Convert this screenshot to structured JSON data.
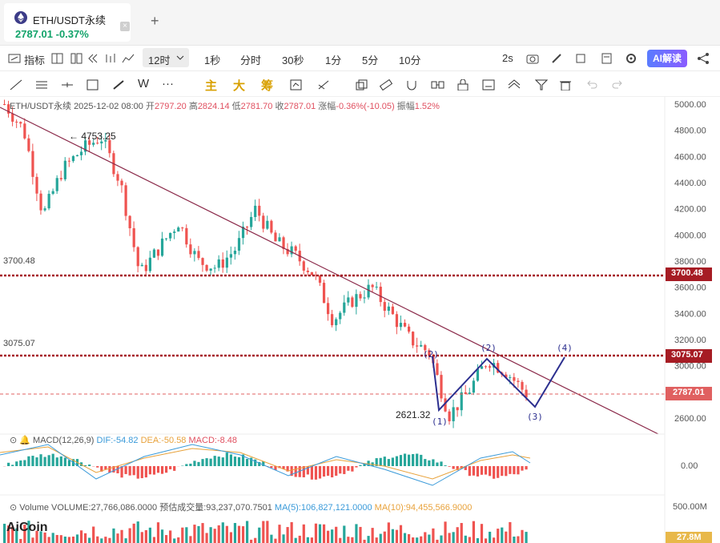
{
  "tab": {
    "title": "ETH/USDT永续",
    "price": "2787.01",
    "change": "-0.37%",
    "close": "×",
    "add": "+"
  },
  "toolbar1": {
    "indicators": "指标",
    "interval": "12时",
    "intervals": [
      "1秒",
      "分时",
      "30秒",
      "1分",
      "5分",
      "10分"
    ],
    "speed": "2s",
    "ai": "AI解读"
  },
  "toolbar2": {
    "w": "W",
    "more": "···",
    "main": "主",
    "big": "大",
    "chip": "筹"
  },
  "info": {
    "symbol": "ETH/USDT永续",
    "time": "2025-12-02 08:00",
    "open_label": "开",
    "open": "2797.20",
    "high_label": "高",
    "high": "2824.14",
    "low_label": "低",
    "low": "2781.70",
    "close_label": "收",
    "close": "2787.01",
    "chg_label": "涨幅",
    "chg": "-0.36%(-10.05)",
    "amp_label": "振幅",
    "amp": "1.52%"
  },
  "macd": {
    "label": "MACD(12,26,9)",
    "dif": "DIF:-54.82",
    "dea": "DEA:-50.58",
    "macd": "MACD:-8.48",
    "zero": "0.00"
  },
  "volume": {
    "label": "Volume",
    "vol": "VOLUME:27,766,086.0000",
    "est": "预估成交量:93,237,070.7501",
    "ma5": "MA(5):106,827,121.0000",
    "ma10": "MA(10):94,455,566.9000",
    "axis_top": "500.00M",
    "axis_badge": "27.8M"
  },
  "logo": "AiCoin",
  "colors": {
    "up": "#26a69a",
    "down": "#ef5350",
    "trend": "#8b2a4a",
    "level": "#a61c24",
    "wave": "#2c2f8f"
  },
  "chart_data": {
    "type": "candlestick",
    "y_ticks": [
      "5000.00",
      "4800.00",
      "4600.00",
      "4400.00",
      "4200.00",
      "4000.00",
      "3800.00",
      "3600.00",
      "3400.00",
      "3200.00",
      "3000.00",
      "2600.00"
    ],
    "levels": [
      {
        "value": 3700.48,
        "label": "3700.48"
      },
      {
        "value": 3075.07,
        "label": "3075.07"
      }
    ],
    "current_price": {
      "value": 2787.01,
      "label": "2787.01"
    },
    "high_marker": {
      "value": 4753.25,
      "label": "← 4753.25"
    },
    "low_marker": {
      "value": 2621.32,
      "label": "2621.32"
    },
    "wave_labels": [
      "(1)",
      "(2)",
      "(3)",
      "(4)",
      "(2)"
    ],
    "waypoints": [
      5000,
      4800,
      4150,
      4500,
      4650,
      4750,
      4400,
      3700,
      3900,
      4100,
      3800,
      3750,
      3900,
      4200,
      3950,
      3850,
      3700,
      3350,
      3500,
      3600,
      3400,
      3200,
      3100,
      2621,
      2800,
      3050,
      2950,
      2787
    ]
  }
}
